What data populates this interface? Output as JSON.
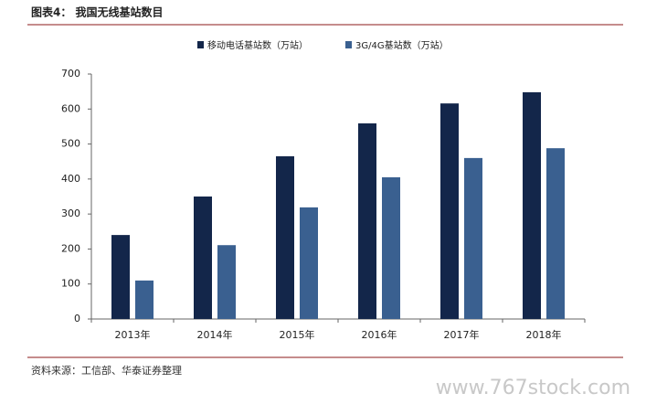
{
  "chart_data": {
    "type": "bar",
    "title": "图表4：  我国无线基站数目",
    "categories": [
      "2013年",
      "2014年",
      "2015年",
      "2016年",
      "2017年",
      "2018年"
    ],
    "series": [
      {
        "name": "移动电话基站数（万站）",
        "color": "#13264a",
        "values": [
          240,
          350,
          465,
          559,
          616,
          648
        ]
      },
      {
        "name": "3G/4G基站数（万站）",
        "color": "#3a6090",
        "values": [
          110,
          211,
          319,
          405,
          460,
          488
        ]
      }
    ],
    "ylim": [
      0,
      700
    ],
    "yticks": [
      0,
      100,
      200,
      300,
      400,
      500,
      600,
      700
    ],
    "legend": "top",
    "source": "资料来源：工信部、华泰证券整理",
    "watermark": "www.767stock.com"
  }
}
